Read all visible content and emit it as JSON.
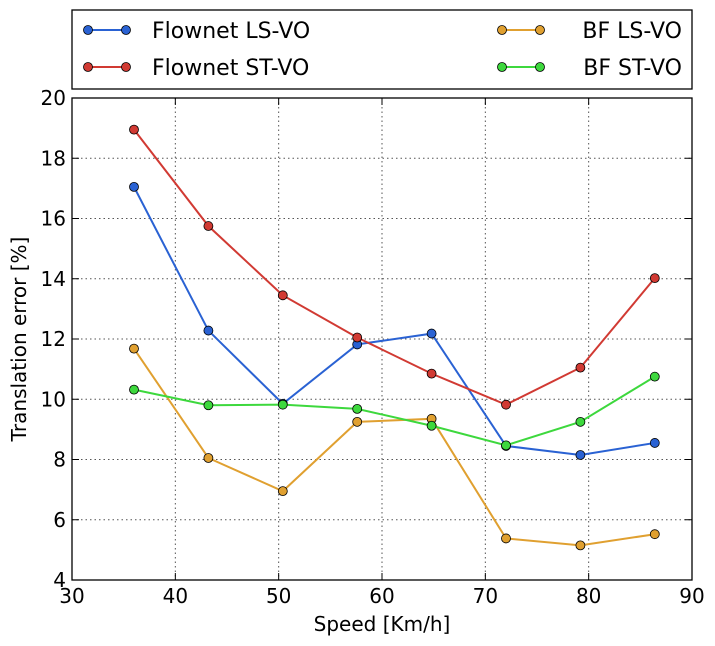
{
  "chart_data": {
    "type": "line",
    "xlabel": "Speed [Km/h]",
    "ylabel": "Translation error [%]",
    "xlim": [
      30,
      90
    ],
    "ylim": [
      4,
      20
    ],
    "xticks": [
      "30",
      "40",
      "50",
      "60",
      "70",
      "80",
      "90"
    ],
    "yticks": [
      "4",
      "6",
      "8",
      "10",
      "12",
      "14",
      "16",
      "18",
      "20"
    ],
    "grid": true,
    "legend_placement": "top, outside plot",
    "x": [
      36,
      43.2,
      50.4,
      57.6,
      64.8,
      72,
      79.2,
      86.4
    ],
    "series": [
      {
        "name": "Flownet LS-VO",
        "color": "#2a62d3",
        "values": [
          17.05,
          12.28,
          9.85,
          11.82,
          12.18,
          8.45,
          8.15,
          8.55
        ]
      },
      {
        "name": "Flownet ST-VO",
        "color": "#d13a33",
        "values": [
          18.95,
          15.75,
          13.45,
          12.05,
          10.85,
          9.82,
          11.05,
          14.02
        ]
      },
      {
        "name": "BF LS-VO",
        "color": "#e0a030",
        "values": [
          11.68,
          8.05,
          6.95,
          9.25,
          9.35,
          5.38,
          5.15,
          5.52
        ]
      },
      {
        "name": "BF ST-VO",
        "color": "#3dd83d",
        "values": [
          10.32,
          9.8,
          9.82,
          9.68,
          9.12,
          8.47,
          9.25,
          10.75
        ]
      }
    ]
  }
}
